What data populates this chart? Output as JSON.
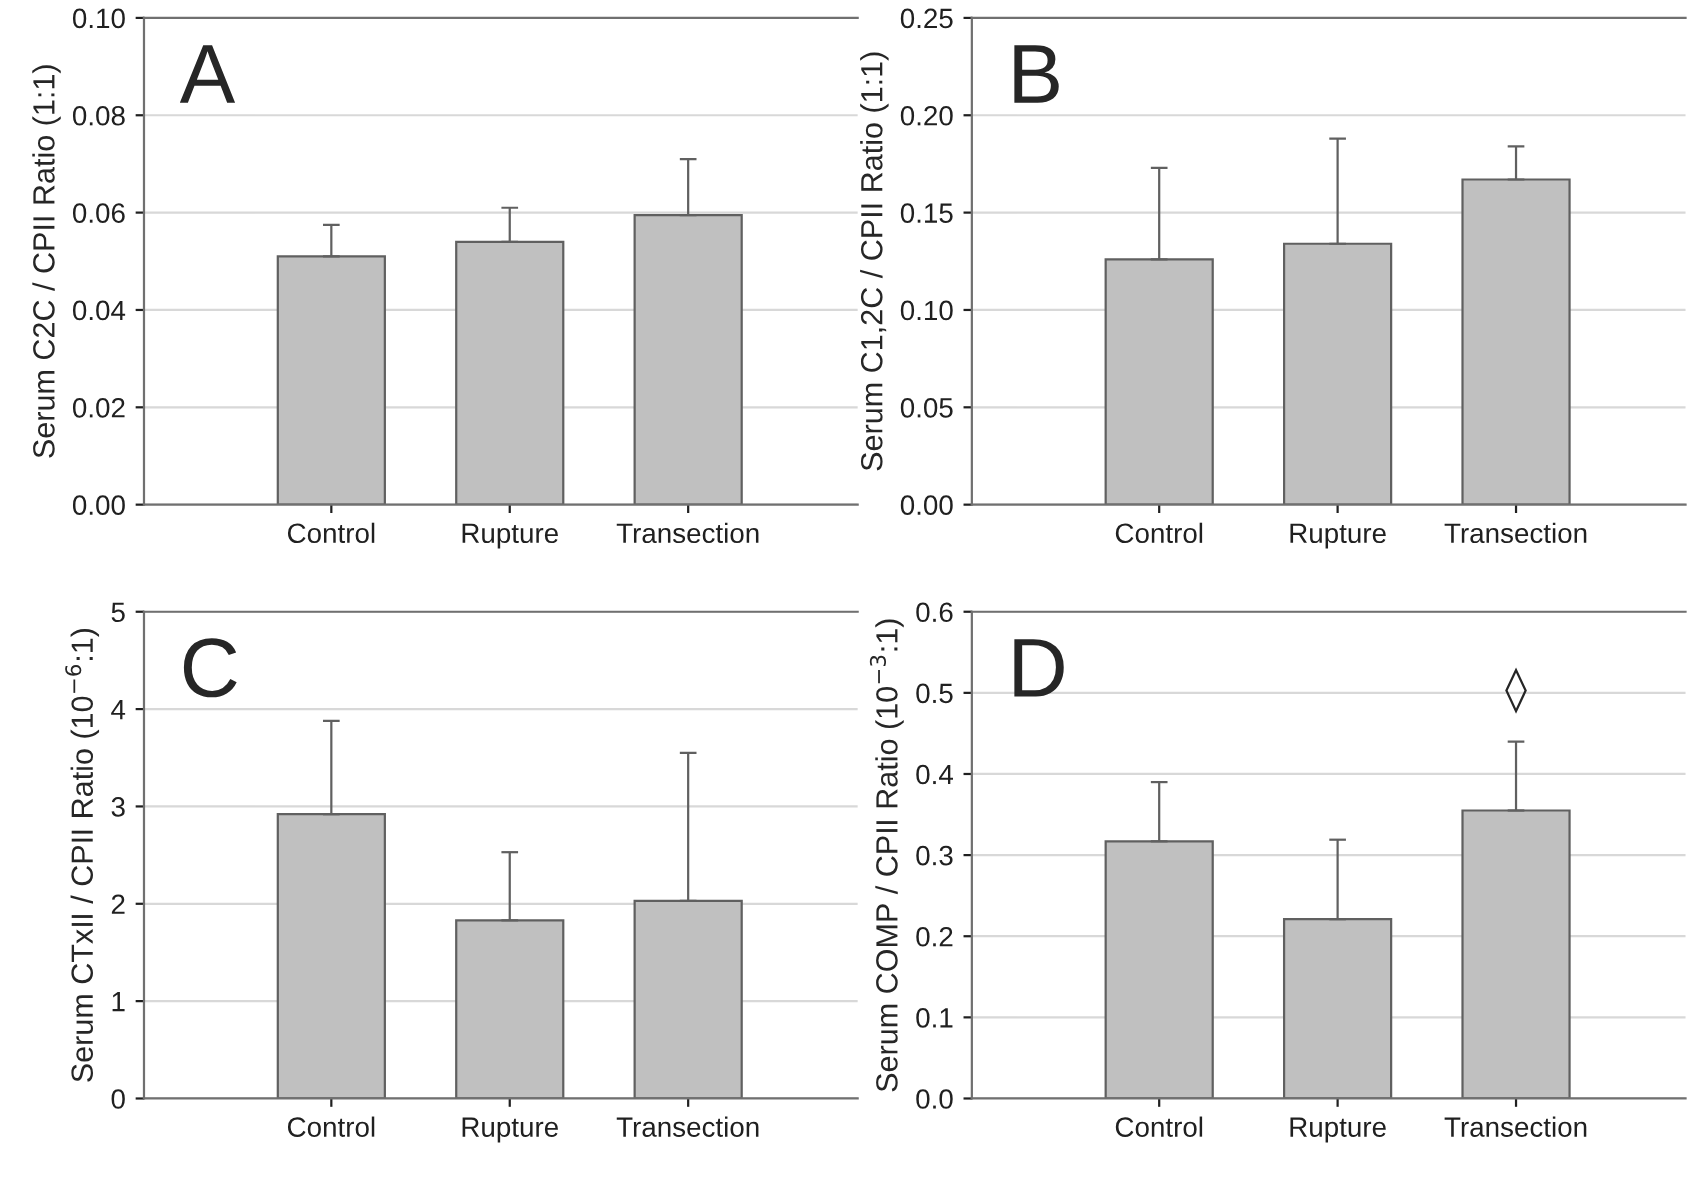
{
  "chart_data": [
    {
      "type": "bar",
      "categories": [
        "Control",
        "Rupture",
        "Transection"
      ],
      "values": [
        0.051,
        0.054,
        0.0595
      ],
      "errors": [
        [
          0.051,
          0.0575
        ],
        [
          0.054,
          0.061
        ],
        [
          0.0595,
          0.071
        ]
      ],
      "color": "#c0c0c0",
      "ylabel": "Serum C2C / CPII Ratio (1:1)",
      "ylim": [
        0,
        0.1
      ],
      "yticks": [
        {
          "value": 0,
          "label": "0.00"
        },
        {
          "value": 0.02,
          "label": "0.02"
        },
        {
          "value": 0.04,
          "label": "0.04"
        },
        {
          "value": 0.06,
          "label": "0.06"
        },
        {
          "value": 0.08,
          "label": "0.08"
        },
        {
          "value": 0.1,
          "label": "0.10"
        }
      ],
      "grid": "y",
      "annotations": [
        "A"
      ]
    },
    {
      "type": "bar",
      "categories": [
        "Control",
        "Rupture",
        "Transection"
      ],
      "values": [
        0.126,
        0.134,
        0.167
      ],
      "errors": [
        [
          0.126,
          0.173
        ],
        [
          0.134,
          0.188
        ],
        [
          0.167,
          0.184
        ]
      ],
      "color": "#c0c0c0",
      "ylabel": "Serum C1,2C / CPII Ratio (1:1)",
      "ylim": [
        0,
        0.25
      ],
      "yticks": [
        {
          "value": 0,
          "label": "0.00"
        },
        {
          "value": 0.05,
          "label": "0.05"
        },
        {
          "value": 0.1,
          "label": "0.10"
        },
        {
          "value": 0.15,
          "label": "0.15"
        },
        {
          "value": 0.2,
          "label": "0.20"
        },
        {
          "value": 0.25,
          "label": "0.25"
        }
      ],
      "grid": "y",
      "annotations": [
        "B"
      ]
    },
    {
      "type": "bar",
      "categories": [
        "Control",
        "Rupture",
        "Transection"
      ],
      "values": [
        2.92,
        1.83,
        2.03
      ],
      "errors": [
        [
          2.92,
          3.88
        ],
        [
          1.83,
          2.53
        ],
        [
          2.03,
          3.55
        ]
      ],
      "color": "#c0c0c0",
      "ylabel": "Serum CTxII / CPII Ratio (10$^{−6}$:1)",
      "ylim": [
        0,
        5
      ],
      "yticks": [
        0,
        1,
        2,
        3,
        4,
        5
      ],
      "grid": "y",
      "annotations": [
        "C"
      ]
    },
    {
      "type": "bar",
      "categories": [
        "Control",
        "Rupture",
        "Transection"
      ],
      "values": [
        0.317,
        0.221,
        0.355
      ],
      "errors": [
        [
          0.317,
          0.39
        ],
        [
          0.221,
          0.319
        ],
        [
          0.355,
          0.44
        ]
      ],
      "color": "#c0c0c0",
      "ylabel": "Serum COMP / CPII Ratio (10$^{−3}$:1)",
      "ylim": [
        0,
        0.6
      ],
      "yticks": [
        {
          "value": 0,
          "label": "0.0"
        },
        0.1,
        0.2,
        0.3,
        0.4,
        0.5,
        0.6
      ],
      "grid": "y",
      "annotations": [
        "D",
        "◊"
      ]
    }
  ]
}
